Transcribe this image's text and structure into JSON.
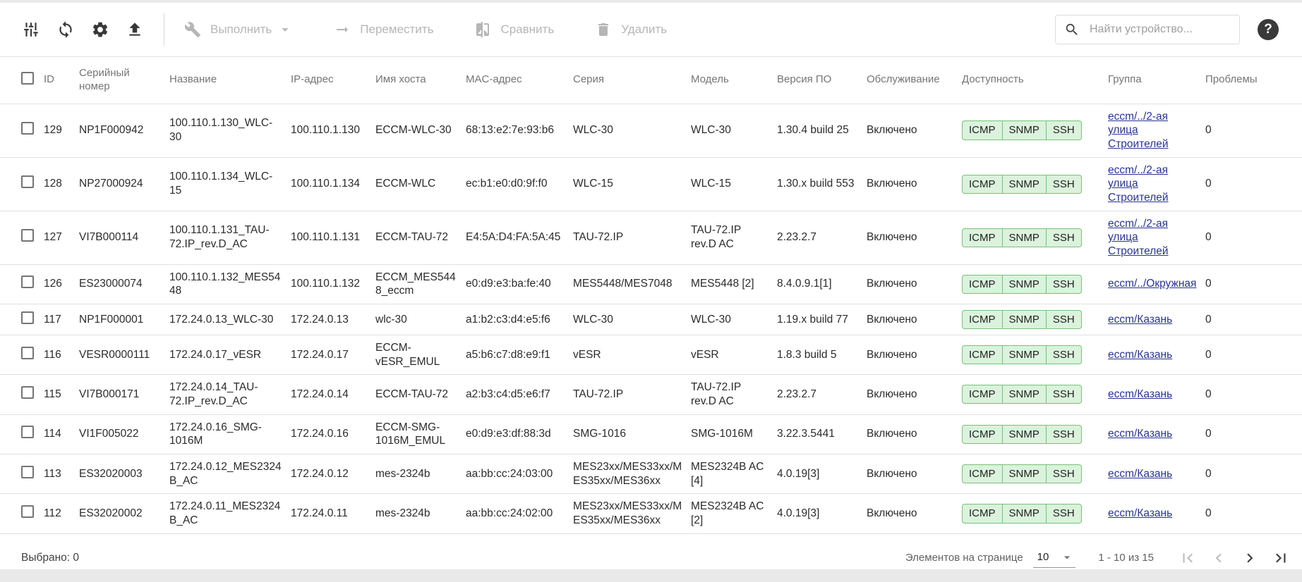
{
  "toolbar": {
    "execute_label": "Выполнить",
    "move_label": "Переместить",
    "compare_label": "Сравнить",
    "delete_label": "Удалить",
    "search_placeholder": "Найти устройство...",
    "help_text": "?"
  },
  "table": {
    "columns": [
      "ID",
      "Серийный номер",
      "Название",
      "IP-адрес",
      "Имя хоста",
      "MAC-адрес",
      "Серия",
      "Модель",
      "Версия ПО",
      "Обслуживание",
      "Доступность",
      "Группа",
      "Проблемы"
    ],
    "rows": [
      {
        "id": "129",
        "serial": "NP1F000942",
        "name": "100.110.1.130_WLC-30",
        "ip": "100.110.1.130",
        "hostname": "ECCM-WLC-30",
        "mac": "68:13:e2:7e:93:b6",
        "series": "WLC-30",
        "model": "WLC-30",
        "firmware": "1.30.4 build 25",
        "maintenance": "Включено",
        "availability": [
          "ICMP",
          "SNMP",
          "SSH"
        ],
        "group": "eccm/../2-ая улица Строителей",
        "problems": "0"
      },
      {
        "id": "128",
        "serial": "NP27000924",
        "name": "100.110.1.134_WLC-15",
        "ip": "100.110.1.134",
        "hostname": "ECCM-WLC",
        "mac": "ec:b1:e0:d0:9f:f0",
        "series": "WLC-15",
        "model": "WLC-15",
        "firmware": "1.30.x build 553",
        "maintenance": "Включено",
        "availability": [
          "ICMP",
          "SNMP",
          "SSH"
        ],
        "group": "eccm/../2-ая улица Строителей",
        "problems": "0"
      },
      {
        "id": "127",
        "serial": "VI7B000114",
        "name": "100.110.1.131_TAU-72.IP_rev.D_AC",
        "ip": "100.110.1.131",
        "hostname": "ECCM-TAU-72",
        "mac": "E4:5A:D4:FA:5A:45",
        "series": "TAU-72.IP",
        "model": "TAU-72.IP rev.D AC",
        "firmware": "2.23.2.7",
        "maintenance": "Включено",
        "availability": [
          "ICMP",
          "SNMP",
          "SSH"
        ],
        "group": "eccm/../2-ая улица Строителей",
        "problems": "0"
      },
      {
        "id": "126",
        "serial": "ES23000074",
        "name": "100.110.1.132_MES5448",
        "ip": "100.110.1.132",
        "hostname": "ECCM_MES5448_eccm",
        "mac": "e0:d9:e3:ba:fe:40",
        "series": "MES5448/MES7048",
        "model": "MES5448 [2]",
        "firmware": "8.4.0.9.1[1]",
        "maintenance": "Включено",
        "availability": [
          "ICMP",
          "SNMP",
          "SSH"
        ],
        "group": "eccm/../Окружная",
        "problems": "0"
      },
      {
        "id": "117",
        "serial": "NP1F000001",
        "name": "172.24.0.13_WLC-30",
        "ip": "172.24.0.13",
        "hostname": "wlc-30",
        "mac": "a1:b2:c3:d4:e5:f6",
        "series": "WLC-30",
        "model": "WLC-30",
        "firmware": "1.19.x build 77",
        "maintenance": "Включено",
        "availability": [
          "ICMP",
          "SNMP",
          "SSH"
        ],
        "group": "eccm/Казань",
        "problems": "0"
      },
      {
        "id": "116",
        "serial": "VESR0000111",
        "name": "172.24.0.17_vESR",
        "ip": "172.24.0.17",
        "hostname": "ECCM-vESR_EMUL",
        "mac": "a5:b6:c7:d8:e9:f1",
        "series": "vESR",
        "model": "vESR",
        "firmware": "1.8.3 build 5",
        "maintenance": "Включено",
        "availability": [
          "ICMP",
          "SNMP",
          "SSH"
        ],
        "group": "eccm/Казань",
        "problems": "0"
      },
      {
        "id": "115",
        "serial": "VI7B000171",
        "name": "172.24.0.14_TAU-72.IP_rev.D_AC",
        "ip": "172.24.0.14",
        "hostname": "ECCM-TAU-72",
        "mac": "a2:b3:c4:d5:e6:f7",
        "series": "TAU-72.IP",
        "model": "TAU-72.IP rev.D AC",
        "firmware": "2.23.2.7",
        "maintenance": "Включено",
        "availability": [
          "ICMP",
          "SNMP",
          "SSH"
        ],
        "group": "eccm/Казань",
        "problems": "0"
      },
      {
        "id": "114",
        "serial": "VI1F005022",
        "name": "172.24.0.16_SMG-1016M",
        "ip": "172.24.0.16",
        "hostname": "ECCM-SMG-1016M_EMUL",
        "mac": "e0:d9:e3:df:88:3d",
        "series": "SMG-1016",
        "model": "SMG-1016M",
        "firmware": "3.22.3.5441",
        "maintenance": "Включено",
        "availability": [
          "ICMP",
          "SNMP",
          "SSH"
        ],
        "group": "eccm/Казань",
        "problems": "0"
      },
      {
        "id": "113",
        "serial": "ES32020003",
        "name": "172.24.0.12_MES2324B_AC",
        "ip": "172.24.0.12",
        "hostname": "mes-2324b",
        "mac": "aa:bb:cc:24:03:00",
        "series": "MES23xx/MES33xx/MES35xx/MES36xx",
        "model": "MES2324B AC [4]",
        "firmware": "4.0.19[3]",
        "maintenance": "Включено",
        "availability": [
          "ICMP",
          "SNMP",
          "SSH"
        ],
        "group": "eccm/Казань",
        "problems": "0"
      },
      {
        "id": "112",
        "serial": "ES32020002",
        "name": "172.24.0.11_MES2324B_AC",
        "ip": "172.24.0.11",
        "hostname": "mes-2324b",
        "mac": "aa:bb:cc:24:02:00",
        "series": "MES23xx/MES33xx/MES35xx/MES36xx",
        "model": "MES2324B AC [2]",
        "firmware": "4.0.19[3]",
        "maintenance": "Включено",
        "availability": [
          "ICMP",
          "SNMP",
          "SSH"
        ],
        "group": "eccm/Казань",
        "problems": "0"
      }
    ]
  },
  "footer": {
    "selected": "Выбрано: 0",
    "per_page_label": "Элементов на странице",
    "per_page_value": "10",
    "range": "1 - 10 из 15"
  },
  "colors": {
    "link": "#283593",
    "badge_bg": "#dbf2dc",
    "badge_border": "#74c378",
    "disabled_action": "#b6b6b6",
    "header_text": "#757575"
  }
}
